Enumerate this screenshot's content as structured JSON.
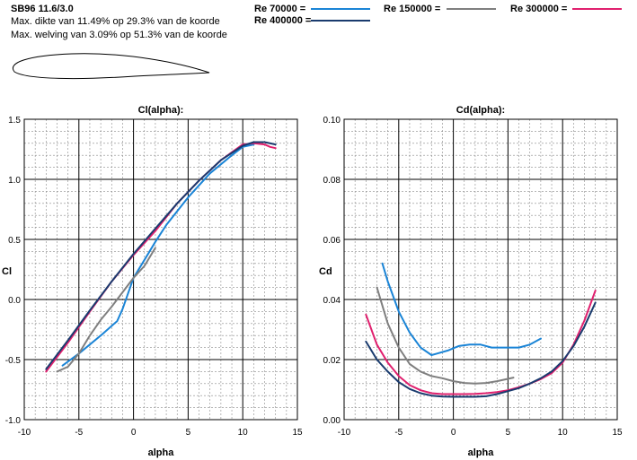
{
  "header": {
    "title": "SB96 11.6/3.0",
    "info_lines": [
      "Max. dikte van 11.49% op 29.3% van de koorde",
      "Max. welving van 3.09% op 51.3% van de koorde"
    ]
  },
  "legend": [
    {
      "label": "Re 70000 =",
      "color": "#1a84d6"
    },
    {
      "label": "Re 150000 =",
      "color": "#7f7f7f"
    },
    {
      "label": "Re 300000 =",
      "color": "#e0206e"
    },
    {
      "label": "Re 400000 =",
      "color": "#1a3b6e"
    }
  ],
  "chart_data": [
    {
      "type": "line",
      "title": "Cl(alpha):",
      "xlabel": "alpha",
      "ylabel": "Cl",
      "xlim": [
        -10,
        15
      ],
      "ylim": [
        -1.0,
        1.5
      ],
      "xticks": [
        "-10",
        "-5",
        "0",
        "5",
        "10",
        "15"
      ],
      "yticks": [
        "-1.0",
        "-0.5",
        "0.0",
        "0.5",
        "1.0",
        "1.5"
      ],
      "grid": true,
      "series": [
        {
          "name": "Re 70000",
          "color": "#1a84d6",
          "x": [
            -6.5,
            -5,
            -3,
            -1.5,
            -1,
            0,
            1,
            2,
            3,
            5,
            7,
            9,
            10,
            11
          ],
          "y": [
            -0.55,
            -0.45,
            -0.3,
            -0.18,
            -0.08,
            0.18,
            0.33,
            0.48,
            0.62,
            0.85,
            1.05,
            1.2,
            1.27,
            1.29
          ]
        },
        {
          "name": "Re 150000",
          "color": "#7f7f7f",
          "x": [
            -7,
            -6,
            -5,
            -4,
            -3,
            -2,
            -1,
            0,
            1,
            2
          ],
          "y": [
            -0.6,
            -0.56,
            -0.45,
            -0.3,
            -0.17,
            -0.06,
            0.06,
            0.18,
            0.28,
            0.43
          ]
        },
        {
          "name": "Re 300000",
          "color": "#e0206e",
          "x": [
            -8,
            -6,
            -4,
            -2,
            0,
            2,
            4,
            6,
            8,
            10,
            11,
            12,
            12.5,
            13
          ],
          "y": [
            -0.6,
            -0.36,
            -0.1,
            0.15,
            0.37,
            0.57,
            0.8,
            0.99,
            1.16,
            1.29,
            1.3,
            1.29,
            1.27,
            1.26
          ]
        },
        {
          "name": "Re 400000",
          "color": "#1a3b6e",
          "x": [
            -8,
            -6,
            -4,
            -2,
            0,
            2,
            4,
            6,
            8,
            10,
            11,
            12,
            13
          ],
          "y": [
            -0.58,
            -0.34,
            -0.09,
            0.15,
            0.38,
            0.59,
            0.8,
            0.99,
            1.16,
            1.28,
            1.31,
            1.31,
            1.29
          ]
        }
      ]
    },
    {
      "type": "line",
      "title": "Cd(alpha):",
      "xlabel": "alpha",
      "ylabel": "Cd",
      "xlim": [
        -10,
        15
      ],
      "ylim": [
        0.0,
        0.1
      ],
      "xticks": [
        "-10",
        "-5",
        "0",
        "5",
        "10",
        "15"
      ],
      "yticks": [
        "0.00",
        "0.02",
        "0.04",
        "0.06",
        "0.08",
        "0.10"
      ],
      "grid": true,
      "series": [
        {
          "name": "Re 70000",
          "color": "#1a84d6",
          "x": [
            -6.5,
            -6,
            -5,
            -4,
            -3,
            -2,
            -1.5,
            -0.5,
            0.5,
            1.5,
            2.5,
            3.5,
            4.5,
            6,
            7,
            8
          ],
          "y": [
            0.052,
            0.046,
            0.036,
            0.029,
            0.024,
            0.0215,
            0.022,
            0.023,
            0.0245,
            0.025,
            0.025,
            0.024,
            0.024,
            0.024,
            0.025,
            0.027
          ]
        },
        {
          "name": "Re 150000",
          "color": "#7f7f7f",
          "x": [
            -7,
            -6,
            -5,
            -4,
            -3,
            -2,
            -1,
            0,
            1,
            2,
            3,
            4,
            5.5
          ],
          "y": [
            0.044,
            0.032,
            0.024,
            0.0185,
            0.016,
            0.0145,
            0.0138,
            0.0128,
            0.0122,
            0.012,
            0.0122,
            0.0128,
            0.014
          ]
        },
        {
          "name": "Re 300000",
          "color": "#e0206e",
          "x": [
            -8,
            -7,
            -6,
            -5,
            -4,
            -3,
            -2,
            -1,
            0,
            1,
            2,
            3,
            4,
            5,
            6,
            7,
            8,
            9,
            10,
            11,
            12,
            13
          ],
          "y": [
            0.035,
            0.025,
            0.019,
            0.0145,
            0.0115,
            0.0098,
            0.0088,
            0.0085,
            0.0085,
            0.0085,
            0.0086,
            0.0088,
            0.0092,
            0.0098,
            0.0108,
            0.012,
            0.0135,
            0.0155,
            0.019,
            0.025,
            0.033,
            0.043
          ]
        },
        {
          "name": "Re 400000",
          "color": "#1a3b6e",
          "x": [
            -8,
            -7,
            -6,
            -5,
            -4,
            -3,
            -2,
            -1,
            0,
            1,
            2,
            3,
            4,
            5,
            6,
            7,
            8,
            9,
            10,
            11,
            12,
            13
          ],
          "y": [
            0.026,
            0.02,
            0.016,
            0.0125,
            0.0102,
            0.0088,
            0.008,
            0.0077,
            0.0076,
            0.0076,
            0.0076,
            0.0078,
            0.0085,
            0.0095,
            0.0105,
            0.012,
            0.0138,
            0.016,
            0.0195,
            0.0245,
            0.031,
            0.039
          ]
        }
      ]
    }
  ]
}
